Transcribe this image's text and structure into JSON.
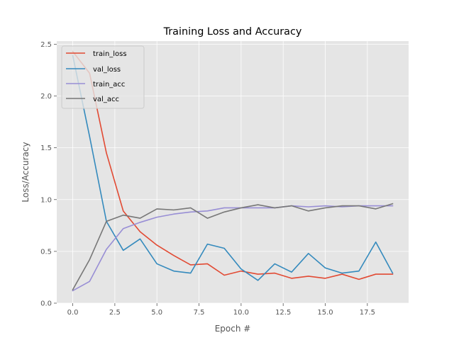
{
  "chart_data": {
    "type": "line",
    "title": "Training Loss and Accuracy",
    "xlabel": "Epoch #",
    "ylabel": "Loss/Accuracy",
    "x": [
      0,
      1,
      2,
      3,
      4,
      5,
      6,
      7,
      8,
      9,
      10,
      11,
      12,
      13,
      14,
      15,
      16,
      17,
      18,
      19
    ],
    "xlim": [
      -0.95,
      19.95
    ],
    "ylim": [
      0,
      2.53
    ],
    "xticks": [
      0,
      2.5,
      5,
      7.5,
      10,
      12.5,
      15,
      17.5
    ],
    "xtick_labels": [
      "0.0",
      "2.5",
      "5.0",
      "7.5",
      "10.0",
      "12.5",
      "15.0",
      "17.5"
    ],
    "yticks": [
      0,
      0.5,
      1.0,
      1.5,
      2.0,
      2.5
    ],
    "ytick_labels": [
      "0.0",
      "0.5",
      "1.0",
      "1.5",
      "2.0",
      "2.5"
    ],
    "grid": true,
    "legend_position": "top-left",
    "background": "#e5e5e5",
    "grid_color": "#ffffff",
    "series": [
      {
        "name": "train_loss",
        "color": "#e24a33",
        "values": [
          2.43,
          2.22,
          1.45,
          0.89,
          0.69,
          0.56,
          0.46,
          0.37,
          0.38,
          0.27,
          0.31,
          0.28,
          0.29,
          0.24,
          0.26,
          0.24,
          0.28,
          0.23,
          0.28,
          0.28
        ]
      },
      {
        "name": "val_loss",
        "color": "#348abd",
        "values": [
          2.39,
          1.61,
          0.79,
          0.51,
          0.62,
          0.38,
          0.31,
          0.29,
          0.57,
          0.53,
          0.33,
          0.22,
          0.38,
          0.3,
          0.48,
          0.34,
          0.29,
          0.31,
          0.59,
          0.29
        ]
      },
      {
        "name": "train_acc",
        "color": "#988ed5",
        "values": [
          0.12,
          0.21,
          0.52,
          0.72,
          0.78,
          0.83,
          0.86,
          0.88,
          0.89,
          0.92,
          0.92,
          0.92,
          0.92,
          0.94,
          0.93,
          0.94,
          0.93,
          0.94,
          0.94,
          0.94
        ]
      },
      {
        "name": "val_acc",
        "color": "#777777",
        "values": [
          0.13,
          0.42,
          0.79,
          0.85,
          0.82,
          0.91,
          0.9,
          0.92,
          0.82,
          0.88,
          0.92,
          0.95,
          0.92,
          0.94,
          0.89,
          0.92,
          0.94,
          0.94,
          0.91,
          0.96
        ]
      }
    ]
  }
}
